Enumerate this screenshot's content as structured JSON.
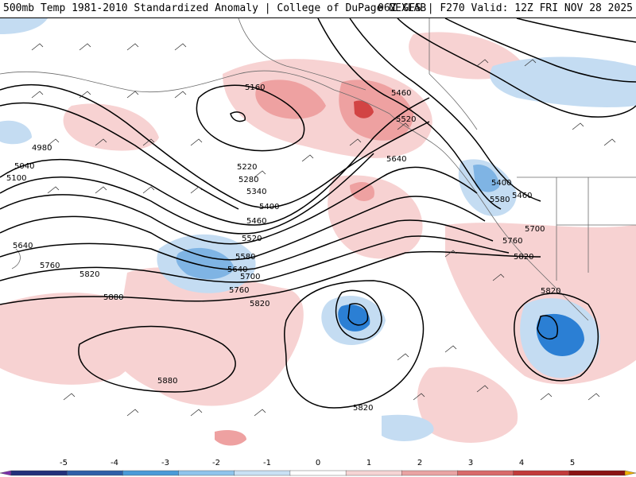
{
  "header": {
    "left_title": "500mb Temp 1981-2010 Standardized Anomaly | College of DuPage NEXLAB",
    "right_title": "06Z GFS | F270 Valid: 12Z FRI NOV 28 2025"
  },
  "colorbar": {
    "ticks": [
      "-5",
      "-4",
      "-3",
      "-2",
      "-1",
      "0",
      "1",
      "2",
      "3",
      "4",
      "5"
    ],
    "colors": [
      "#7a2fa8",
      "#22307a",
      "#2f5fa8",
      "#4a9ad8",
      "#8fc4ec",
      "#c9e0f4",
      "#ffffff",
      "#f6d4d4",
      "#e9a3a3",
      "#d86a6a",
      "#c23a3a",
      "#8a1313",
      "#f0b000"
    ]
  },
  "colors": {
    "warm_light": "#f7d2d2",
    "warm_mid": "#eea1a1",
    "warm_strong": "#d24444",
    "cold_light": "#c4dcf2",
    "cold_mid": "#7fb4e4",
    "cold_strong": "#2b7fd4",
    "contour": "#000000",
    "coast": "#6b6b6b"
  },
  "height_labels": [
    {
      "text": "5160"
    },
    {
      "text": "4980"
    },
    {
      "text": "5040"
    },
    {
      "text": "5100"
    },
    {
      "text": "5220"
    },
    {
      "text": "5280"
    },
    {
      "text": "5340"
    },
    {
      "text": "5400"
    },
    {
      "text": "5460"
    },
    {
      "text": "5520"
    },
    {
      "text": "5580"
    },
    {
      "text": "5640"
    },
    {
      "text": "5700"
    },
    {
      "text": "5760"
    },
    {
      "text": "5820"
    },
    {
      "text": "5880"
    },
    {
      "text": "5640"
    },
    {
      "text": "5760"
    },
    {
      "text": "5820"
    },
    {
      "text": "5880"
    },
    {
      "text": "5460"
    },
    {
      "text": "5520"
    },
    {
      "text": "5640"
    },
    {
      "text": "5400"
    },
    {
      "text": "5460"
    },
    {
      "text": "5580"
    },
    {
      "text": "5700"
    },
    {
      "text": "5760"
    },
    {
      "text": "5820"
    },
    {
      "text": "5820"
    },
    {
      "text": "5820"
    }
  ]
}
